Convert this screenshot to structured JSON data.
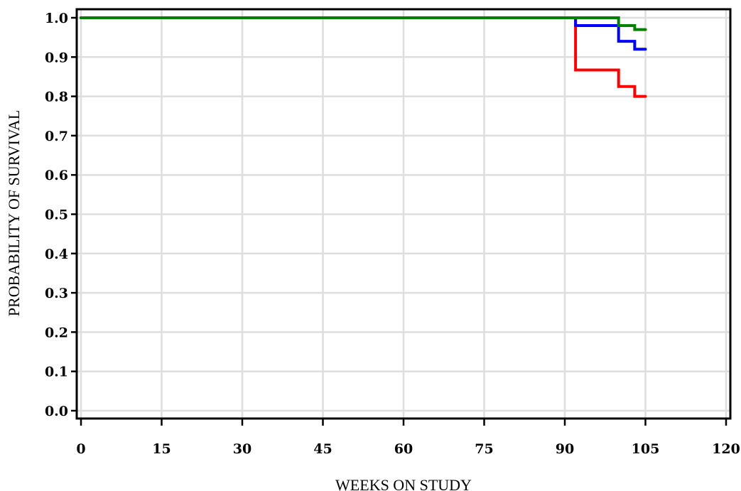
{
  "chart_data": {
    "type": "line",
    "title": "",
    "xlabel": "WEEKS ON STUDY",
    "ylabel": "PROBABILITY OF SURVIVAL",
    "xlim": [
      0,
      120
    ],
    "ylim": [
      0,
      1.0
    ],
    "x_ticks": [
      0,
      15,
      30,
      45,
      60,
      75,
      90,
      105,
      120
    ],
    "y_ticks": [
      0.0,
      0.1,
      0.2,
      0.3,
      0.4,
      0.5,
      0.6,
      0.7,
      0.8,
      0.9,
      1.0
    ],
    "x_tick_labels": [
      "0",
      "15",
      "30",
      "45",
      "60",
      "75",
      "90",
      "105",
      "120"
    ],
    "y_tick_labels": [
      "0.0",
      "0.1",
      "0.2",
      "0.3",
      "0.4",
      "0.5",
      "0.6",
      "0.7",
      "0.8",
      "0.9",
      "1.0"
    ],
    "grid": true,
    "step": true,
    "series": [
      {
        "color": "#ff0000",
        "x": [
          0,
          92,
          100,
          103,
          105
        ],
        "y": [
          1.0,
          0.867,
          0.825,
          0.8,
          0.8
        ]
      },
      {
        "color": "#0000ff",
        "x": [
          0,
          92,
          100,
          103,
          105
        ],
        "y": [
          1.0,
          0.98,
          0.94,
          0.92,
          0.92
        ]
      },
      {
        "color": "#008000",
        "x": [
          0,
          100,
          103,
          105
        ],
        "y": [
          1.0,
          0.98,
          0.97,
          0.97
        ]
      }
    ]
  }
}
